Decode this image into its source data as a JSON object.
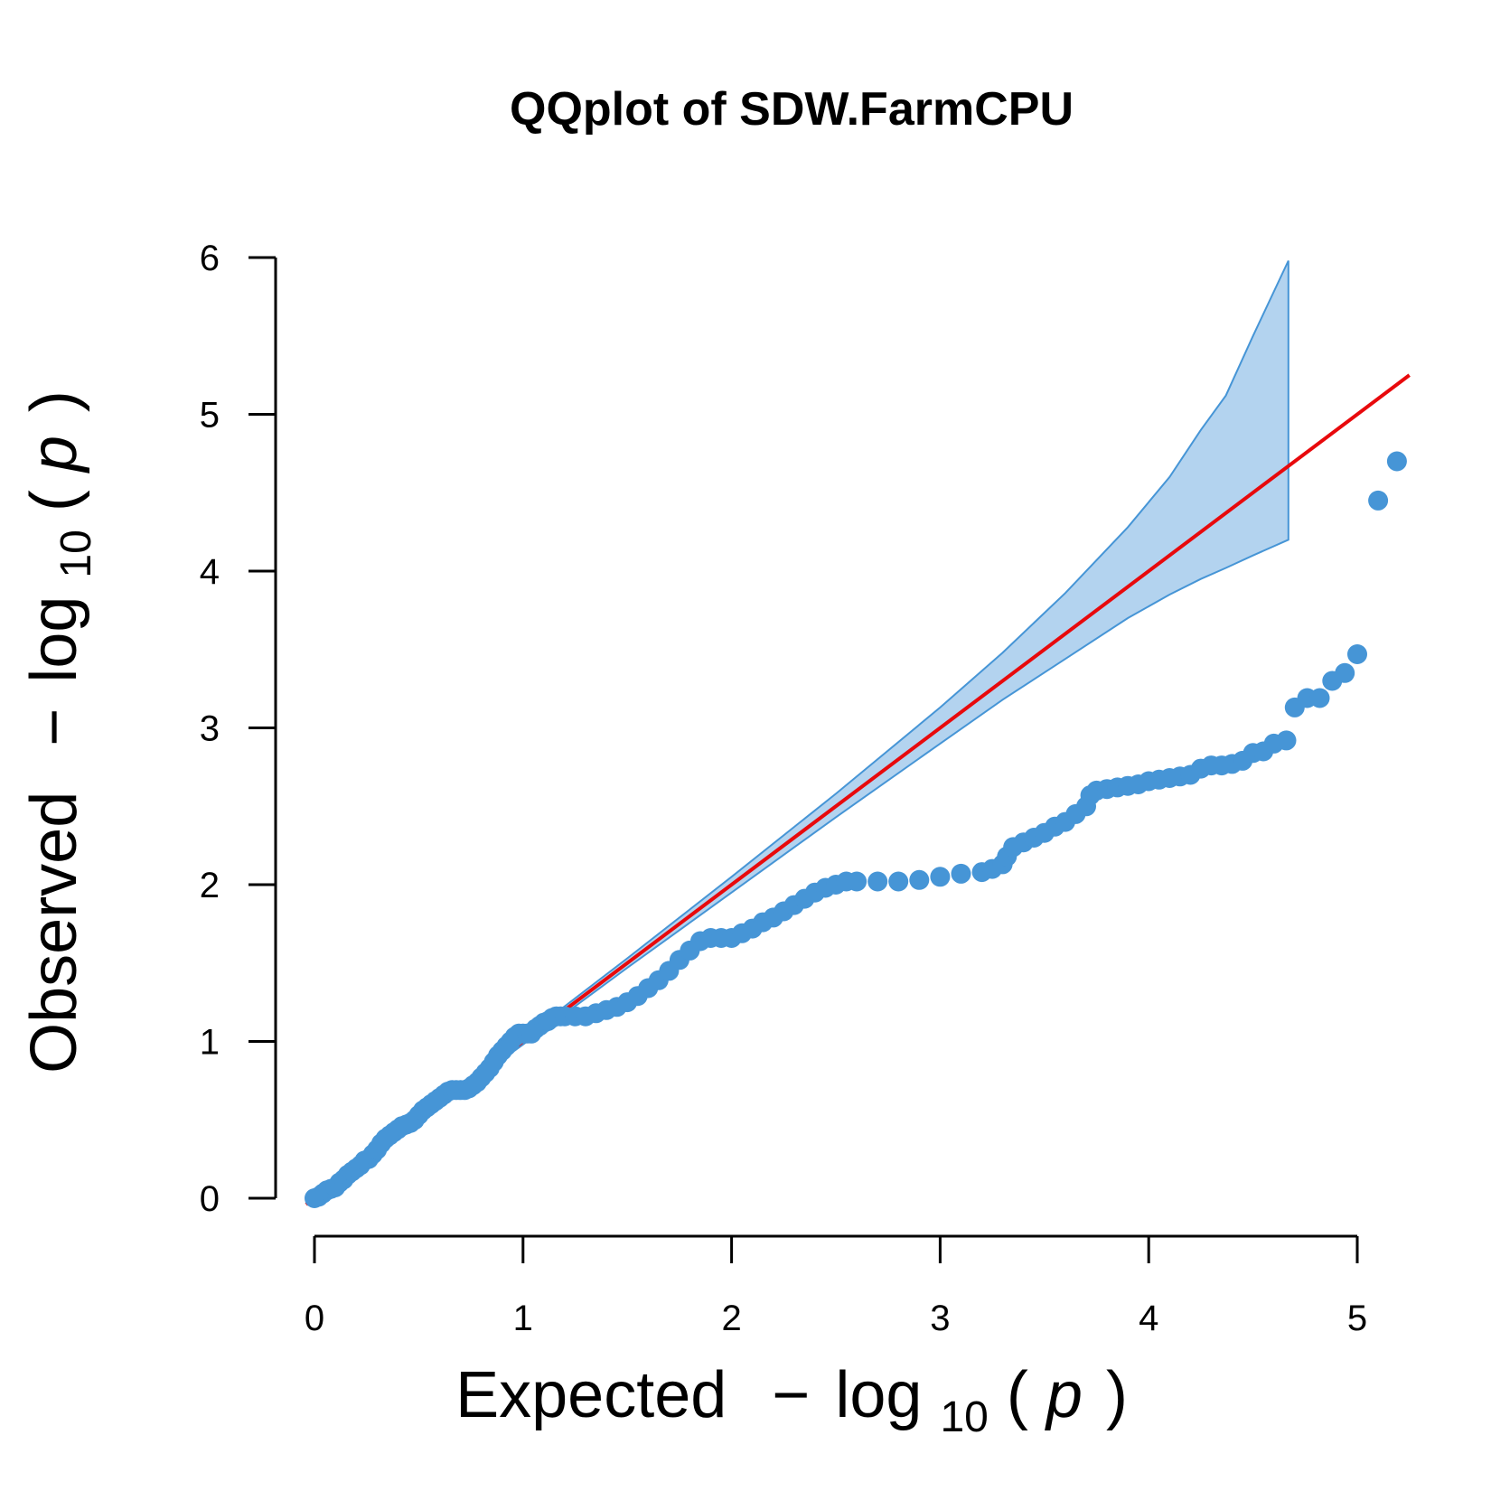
{
  "chart_data": {
    "type": "scatter",
    "title": "QQplot of SDW.FarmCPU",
    "xlabel": {
      "prefix": "Expected",
      "minus": "−",
      "log": "log",
      "sub": "10",
      "open": "(",
      "var": "p",
      "close": ")"
    },
    "ylabel": {
      "prefix": "Observed",
      "minus": "−",
      "log": "log",
      "sub": "10",
      "open": "(",
      "var": "p",
      "close": ")"
    },
    "xlim": [
      0,
      5
    ],
    "ylim": [
      0,
      6
    ],
    "xticks": [
      0,
      1,
      2,
      3,
      4,
      5
    ],
    "yticks": [
      0,
      1,
      2,
      3,
      4,
      5,
      6
    ],
    "grid": false,
    "colors": {
      "points": "#4695D6",
      "reference_line": "#E8090C",
      "band_fill": "#B3D3EF",
      "band_edge": "#4695D6"
    },
    "reference_line": {
      "slope": 1,
      "intercept": 0
    },
    "confidence_band": {
      "x": [
        0.0,
        0.5,
        1.0,
        1.5,
        2.0,
        2.5,
        3.0,
        3.3,
        3.6,
        3.9,
        4.1,
        4.25,
        4.37,
        4.5,
        4.67
      ],
      "upper": [
        0.0,
        0.5,
        1.02,
        1.53,
        2.05,
        2.58,
        3.13,
        3.48,
        3.86,
        4.28,
        4.6,
        4.9,
        5.12,
        5.5,
        5.98
      ],
      "lower": [
        0.0,
        0.5,
        0.98,
        1.47,
        1.95,
        2.43,
        2.9,
        3.18,
        3.44,
        3.7,
        3.85,
        3.95,
        4.02,
        4.1,
        4.2
      ]
    },
    "points": [
      [
        0.0,
        0.0
      ],
      [
        0.02,
        0.01
      ],
      [
        0.04,
        0.03
      ],
      [
        0.06,
        0.05
      ],
      [
        0.08,
        0.06
      ],
      [
        0.1,
        0.07
      ],
      [
        0.12,
        0.1
      ],
      [
        0.14,
        0.12
      ],
      [
        0.16,
        0.15
      ],
      [
        0.18,
        0.17
      ],
      [
        0.2,
        0.19
      ],
      [
        0.22,
        0.21
      ],
      [
        0.24,
        0.24
      ],
      [
        0.26,
        0.25
      ],
      [
        0.28,
        0.28
      ],
      [
        0.3,
        0.31
      ],
      [
        0.32,
        0.35
      ],
      [
        0.34,
        0.38
      ],
      [
        0.36,
        0.4
      ],
      [
        0.38,
        0.42
      ],
      [
        0.4,
        0.44
      ],
      [
        0.42,
        0.46
      ],
      [
        0.44,
        0.47
      ],
      [
        0.46,
        0.48
      ],
      [
        0.48,
        0.5
      ],
      [
        0.5,
        0.53
      ],
      [
        0.52,
        0.56
      ],
      [
        0.54,
        0.58
      ],
      [
        0.56,
        0.6
      ],
      [
        0.58,
        0.62
      ],
      [
        0.6,
        0.64
      ],
      [
        0.62,
        0.66
      ],
      [
        0.64,
        0.68
      ],
      [
        0.66,
        0.69
      ],
      [
        0.68,
        0.69
      ],
      [
        0.7,
        0.69
      ],
      [
        0.72,
        0.69
      ],
      [
        0.74,
        0.7
      ],
      [
        0.76,
        0.72
      ],
      [
        0.78,
        0.74
      ],
      [
        0.8,
        0.77
      ],
      [
        0.82,
        0.8
      ],
      [
        0.84,
        0.83
      ],
      [
        0.86,
        0.87
      ],
      [
        0.88,
        0.91
      ],
      [
        0.9,
        0.94
      ],
      [
        0.92,
        0.97
      ],
      [
        0.94,
        1.0
      ],
      [
        0.96,
        1.03
      ],
      [
        0.98,
        1.05
      ],
      [
        1.0,
        1.05
      ],
      [
        1.02,
        1.05
      ],
      [
        1.04,
        1.05
      ],
      [
        1.06,
        1.08
      ],
      [
        1.08,
        1.1
      ],
      [
        1.1,
        1.12
      ],
      [
        1.12,
        1.13
      ],
      [
        1.14,
        1.15
      ],
      [
        1.16,
        1.16
      ],
      [
        1.18,
        1.16
      ],
      [
        1.2,
        1.16
      ],
      [
        1.25,
        1.16
      ],
      [
        1.3,
        1.16
      ],
      [
        1.35,
        1.18
      ],
      [
        1.4,
        1.2
      ],
      [
        1.45,
        1.22
      ],
      [
        1.5,
        1.25
      ],
      [
        1.55,
        1.29
      ],
      [
        1.6,
        1.34
      ],
      [
        1.65,
        1.39
      ],
      [
        1.7,
        1.45
      ],
      [
        1.75,
        1.52
      ],
      [
        1.8,
        1.58
      ],
      [
        1.85,
        1.64
      ],
      [
        1.9,
        1.66
      ],
      [
        1.95,
        1.66
      ],
      [
        2.0,
        1.66
      ],
      [
        2.05,
        1.69
      ],
      [
        2.1,
        1.72
      ],
      [
        2.15,
        1.76
      ],
      [
        2.2,
        1.79
      ],
      [
        2.25,
        1.83
      ],
      [
        2.3,
        1.87
      ],
      [
        2.35,
        1.91
      ],
      [
        2.4,
        1.95
      ],
      [
        2.45,
        1.98
      ],
      [
        2.5,
        2.0
      ],
      [
        2.55,
        2.02
      ],
      [
        2.6,
        2.02
      ],
      [
        2.7,
        2.02
      ],
      [
        2.8,
        2.02
      ],
      [
        2.9,
        2.03
      ],
      [
        3.0,
        2.05
      ],
      [
        3.1,
        2.07
      ],
      [
        3.2,
        2.08
      ],
      [
        3.25,
        2.1
      ],
      [
        3.3,
        2.13
      ],
      [
        3.32,
        2.18
      ],
      [
        3.35,
        2.24
      ],
      [
        3.4,
        2.27
      ],
      [
        3.45,
        2.3
      ],
      [
        3.5,
        2.33
      ],
      [
        3.55,
        2.37
      ],
      [
        3.6,
        2.4
      ],
      [
        3.65,
        2.45
      ],
      [
        3.7,
        2.5
      ],
      [
        3.72,
        2.57
      ],
      [
        3.75,
        2.6
      ],
      [
        3.8,
        2.61
      ],
      [
        3.85,
        2.62
      ],
      [
        3.9,
        2.63
      ],
      [
        3.95,
        2.64
      ],
      [
        4.0,
        2.66
      ],
      [
        4.05,
        2.67
      ],
      [
        4.1,
        2.68
      ],
      [
        4.15,
        2.69
      ],
      [
        4.2,
        2.7
      ],
      [
        4.25,
        2.74
      ],
      [
        4.3,
        2.76
      ],
      [
        4.35,
        2.76
      ],
      [
        4.4,
        2.77
      ],
      [
        4.45,
        2.79
      ],
      [
        4.5,
        2.84
      ],
      [
        4.55,
        2.85
      ],
      [
        4.6,
        2.9
      ],
      [
        4.66,
        2.92
      ],
      [
        4.7,
        3.13
      ],
      [
        4.76,
        3.19
      ],
      [
        4.82,
        3.19
      ],
      [
        4.88,
        3.3
      ],
      [
        4.94,
        3.35
      ],
      [
        5.0,
        3.47
      ],
      [
        5.1,
        4.45
      ],
      [
        5.19,
        4.7
      ]
    ]
  }
}
